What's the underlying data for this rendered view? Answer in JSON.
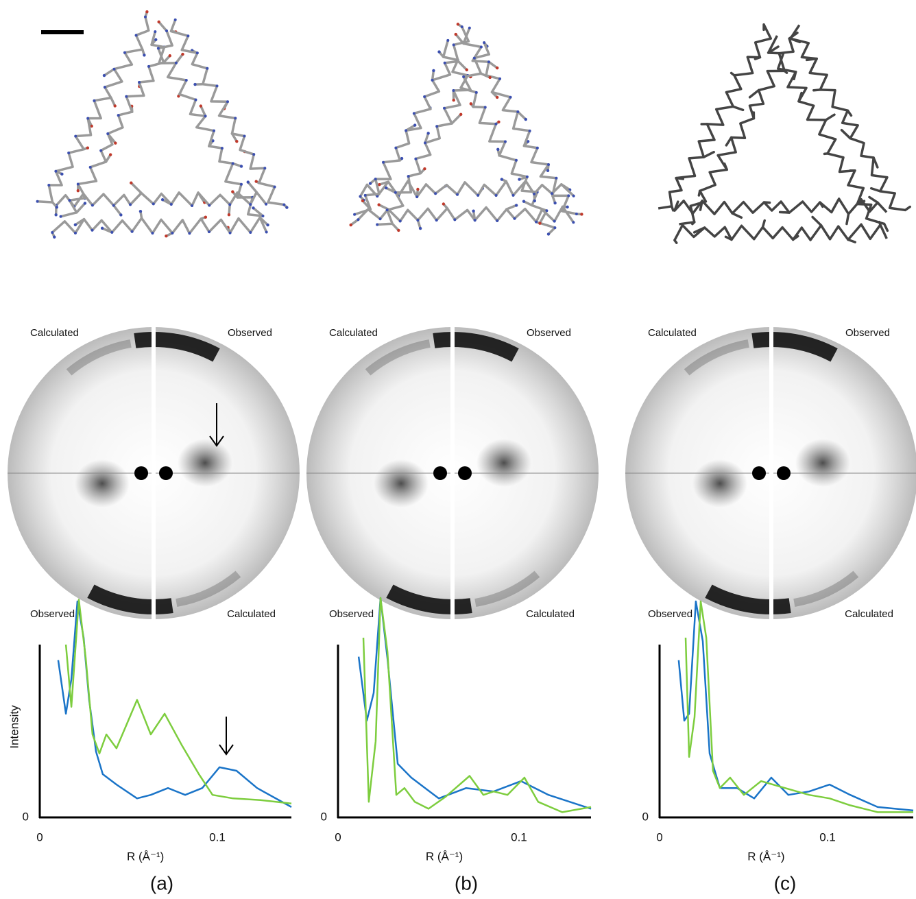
{
  "panels": [
    {
      "label": "(a)",
      "diffraction_labels": {
        "top_left": "Calculated",
        "top_right": "Observed",
        "bottom_left": "Observed",
        "bottom_right": "Calculated"
      }
    },
    {
      "label": "(b)",
      "diffraction_labels": {
        "top_left": "Calculated",
        "top_right": "Observed",
        "bottom_left": "Observed",
        "bottom_right": "Calculated"
      }
    },
    {
      "label": "(c)",
      "diffraction_labels": {
        "top_left": "Calculated",
        "top_right": "Observed",
        "bottom_left": "Observed",
        "bottom_right": "Calculated"
      }
    }
  ],
  "chart_data": [
    {
      "type": "line",
      "ylabel": "Intensity",
      "xlabel": "R (Å⁻¹)",
      "xlim": [
        0,
        0.1417
      ],
      "xticks": [
        0,
        0.1
      ],
      "ylim": [
        0,
        1
      ],
      "yticks": [
        0
      ],
      "series": [
        {
          "color": "#1a74c8",
          "x": [
            0.0104,
            0.0147,
            0.0178,
            0.0212,
            0.0247,
            0.0278,
            0.0317,
            0.0355,
            0.0432,
            0.0548,
            0.0625,
            0.0722,
            0.0819,
            0.0915,
            0.1012,
            0.1108,
            0.1224,
            0.1417
          ],
          "values": [
            0.91,
            0.6,
            0.8,
            1.25,
            1.04,
            0.68,
            0.38,
            0.25,
            0.19,
            0.11,
            0.13,
            0.17,
            0.13,
            0.17,
            0.29,
            0.27,
            0.17,
            0.06
          ]
        },
        {
          "color": "#7dcd3e",
          "x": [
            0.0147,
            0.0178,
            0.022,
            0.0259,
            0.0297,
            0.0336,
            0.0375,
            0.0432,
            0.0548,
            0.0625,
            0.0703,
            0.0799,
            0.0896,
            0.0973,
            0.1089,
            0.1243,
            0.1417
          ],
          "values": [
            1.0,
            0.64,
            1.26,
            0.92,
            0.48,
            0.37,
            0.48,
            0.4,
            0.68,
            0.48,
            0.6,
            0.42,
            0.25,
            0.13,
            0.11,
            0.1,
            0.08
          ]
        }
      ]
    },
    {
      "type": "line",
      "xlabel": "R (Å⁻¹)",
      "xlim": [
        0,
        0.1398
      ],
      "xticks": [
        0,
        0.1
      ],
      "ylim": [
        0,
        1
      ],
      "yticks": [
        0
      ],
      "series": [
        {
          "color": "#1a74c8",
          "x": [
            0.0114,
            0.0159,
            0.0197,
            0.0235,
            0.0273,
            0.033,
            0.0405,
            0.0481,
            0.0557,
            0.0708,
            0.086,
            0.1011,
            0.1163,
            0.1398
          ],
          "values": [
            0.93,
            0.56,
            0.72,
            1.27,
            0.92,
            0.31,
            0.23,
            0.17,
            0.11,
            0.17,
            0.15,
            0.21,
            0.13,
            0.05
          ]
        },
        {
          "color": "#7dcd3e",
          "x": [
            0.014,
            0.017,
            0.0208,
            0.0235,
            0.0273,
            0.0322,
            0.0367,
            0.0424,
            0.05,
            0.0595,
            0.0727,
            0.0803,
            0.086,
            0.0936,
            0.103,
            0.1106,
            0.1239,
            0.1398
          ],
          "values": [
            1.04,
            0.09,
            0.44,
            1.27,
            0.96,
            0.13,
            0.17,
            0.09,
            0.05,
            0.12,
            0.24,
            0.13,
            0.15,
            0.13,
            0.23,
            0.09,
            0.03,
            0.06
          ]
        }
      ]
    },
    {
      "type": "line",
      "xlabel": "R (Å⁻¹)",
      "xlim": [
        0,
        0.151
      ],
      "xticks": [
        0,
        0.1
      ],
      "ylim": [
        0,
        1
      ],
      "yticks": [
        0
      ],
      "series": [
        {
          "color": "#1a74c8",
          "x": [
            0.0114,
            0.0147,
            0.0176,
            0.0216,
            0.0257,
            0.0298,
            0.0359,
            0.0461,
            0.0563,
            0.0665,
            0.0767,
            0.089,
            0.1012,
            0.1135,
            0.1298,
            0.151
          ],
          "values": [
            0.91,
            0.56,
            0.6,
            1.25,
            1.02,
            0.37,
            0.17,
            0.17,
            0.11,
            0.23,
            0.13,
            0.15,
            0.19,
            0.13,
            0.06,
            0.04
          ]
        },
        {
          "color": "#7dcd3e",
          "x": [
            0.0155,
            0.0176,
            0.0208,
            0.0245,
            0.0278,
            0.0318,
            0.0359,
            0.042,
            0.0502,
            0.0604,
            0.0747,
            0.089,
            0.1012,
            0.1135,
            0.1298,
            0.151
          ],
          "values": [
            1.04,
            0.35,
            0.58,
            1.25,
            1.04,
            0.27,
            0.17,
            0.23,
            0.13,
            0.21,
            0.17,
            0.13,
            0.11,
            0.07,
            0.03,
            0.03
          ]
        }
      ]
    }
  ]
}
